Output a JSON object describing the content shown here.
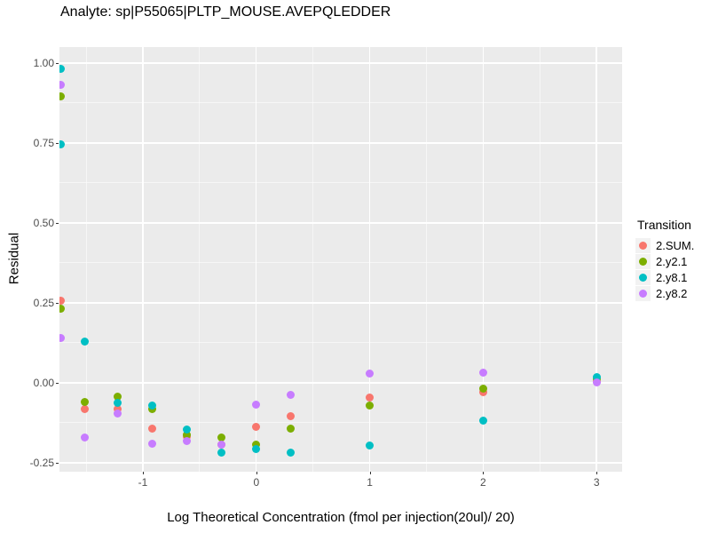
{
  "header": {
    "title": "Analyte: sp|P55065|PLTP_MOUSE.AVEPQLEDDER"
  },
  "chart_data": {
    "type": "scatter",
    "title": "Analyte: sp|P55065|PLTP_MOUSE.AVEPQLEDDER",
    "xlabel": "Log Theoretical Concentration (fmol per injection(20ul)/ 20)",
    "ylabel": "Residual",
    "grid": true,
    "panel_bg": "#EBEBEB",
    "gridline_color": "#FFFFFF",
    "tick_text_color": "#4D4D4D",
    "note": "ggplot2-style residual plot; points at x=-1.72 sit half-clipped at the left panel edge (zero/blank concentration samples).",
    "x_axis": {
      "range": [
        -1.7355,
        3.2255
      ],
      "major_ticks": [
        -1,
        0,
        1,
        2,
        3
      ],
      "tick_labels": [
        "-1",
        "0",
        "1",
        "2",
        "3"
      ],
      "minor_ticks": [
        -1.5,
        -0.5,
        0.5,
        1.5,
        2.5
      ]
    },
    "y_axis": {
      "range": [
        -0.278,
        1.05
      ],
      "major_ticks": [
        1.0,
        0.75,
        0.5,
        0.25,
        0.0,
        -0.25
      ],
      "tick_labels": [
        "1.00",
        "0.75",
        "0.50",
        "0.25",
        "0.00",
        "-0.25"
      ],
      "minor_ticks": [
        0.875,
        0.625,
        0.375,
        0.125,
        -0.125
      ]
    },
    "legend": {
      "title": "Transition",
      "position": "right"
    },
    "series": [
      {
        "name": "2.SUM.",
        "color": "#F8766D",
        "points": [
          [
            -1.72,
            0.258
          ],
          [
            -1.51,
            -0.081
          ],
          [
            -1.22,
            -0.083
          ],
          [
            -0.92,
            -0.144
          ],
          [
            -0.61,
            -0.169
          ],
          [
            -0.31,
            -0.192
          ],
          [
            0.0,
            -0.139
          ],
          [
            0.3,
            -0.103
          ],
          [
            1.0,
            -0.047
          ],
          [
            2.0,
            -0.028
          ],
          [
            3.0,
            0.005
          ]
        ]
      },
      {
        "name": "2.y2.1",
        "color": "#7CAE00",
        "points": [
          [
            -1.72,
            0.897
          ],
          [
            -1.72,
            0.231
          ],
          [
            -1.51,
            -0.061
          ],
          [
            -1.22,
            -0.042
          ],
          [
            -0.92,
            -0.083
          ],
          [
            -0.61,
            -0.164
          ],
          [
            -0.31,
            -0.171
          ],
          [
            0.0,
            -0.194
          ],
          [
            0.3,
            -0.142
          ],
          [
            1.0,
            -0.072
          ],
          [
            2.0,
            -0.017
          ],
          [
            3.0,
            0.011
          ]
        ]
      },
      {
        "name": "2.y8.1",
        "color": "#00BFC4",
        "points": [
          [
            -1.72,
            0.983
          ],
          [
            -1.72,
            0.747
          ],
          [
            -1.51,
            0.128
          ],
          [
            -1.22,
            -0.064
          ],
          [
            -0.92,
            -0.071
          ],
          [
            -0.61,
            -0.147
          ],
          [
            -0.31,
            -0.219
          ],
          [
            0.0,
            -0.206
          ],
          [
            0.3,
            -0.219
          ],
          [
            1.0,
            -0.197
          ],
          [
            2.0,
            -0.117
          ],
          [
            3.0,
            0.019
          ]
        ]
      },
      {
        "name": "2.y8.2",
        "color": "#C77CFF",
        "points": [
          [
            -1.72,
            0.931
          ],
          [
            -1.72,
            0.139
          ],
          [
            -1.51,
            -0.172
          ],
          [
            -1.22,
            -0.097
          ],
          [
            -0.92,
            -0.19
          ],
          [
            -0.61,
            -0.183
          ],
          [
            -0.31,
            -0.194
          ],
          [
            0.0,
            -0.067
          ],
          [
            0.3,
            -0.039
          ],
          [
            1.0,
            0.028
          ],
          [
            2.0,
            0.031
          ],
          [
            3.0,
            0.0
          ]
        ]
      }
    ]
  }
}
